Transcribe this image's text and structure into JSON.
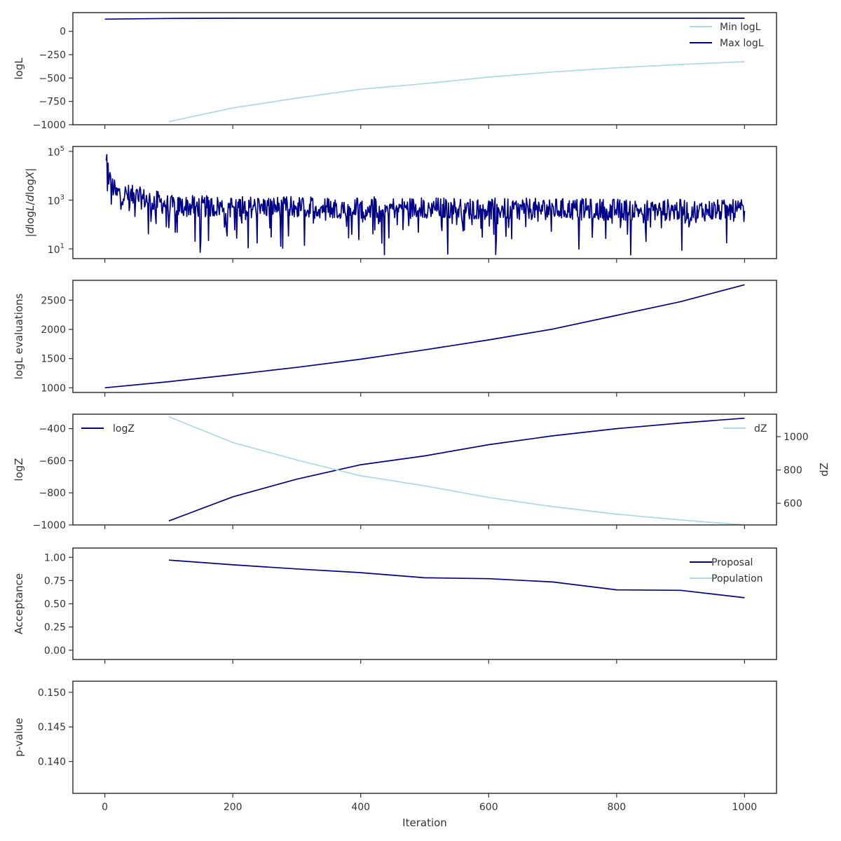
{
  "figure": {
    "xlabel": "Iteration",
    "x_ticks": [
      "0",
      "200",
      "400",
      "600",
      "800",
      "1000"
    ],
    "x_tick_values": [
      0,
      200,
      400,
      600,
      800,
      1000
    ],
    "xlim": [
      -50,
      1050
    ]
  },
  "colors": {
    "dark": "#00008b",
    "light": "#add8e6",
    "axis": "#333333"
  },
  "chart_data": [
    {
      "type": "line",
      "ylabel": "logL",
      "ylim": [
        -1000,
        200
      ],
      "y_ticks": [
        0,
        -250,
        -500,
        -750,
        -1000
      ],
      "y_tick_labels": [
        "0",
        "−250",
        "−500",
        "−750",
        "−1000"
      ],
      "legend": "top-right",
      "series": [
        {
          "name": "Min logL",
          "color": "#add8e6",
          "x": [
            100,
            200,
            300,
            400,
            500,
            600,
            700,
            800,
            900,
            1000
          ],
          "y": [
            -967,
            -820,
            -715,
            -620,
            -560,
            -490,
            -435,
            -390,
            -355,
            -325
          ]
        },
        {
          "name": "Max logL",
          "color": "#00008b",
          "x": [
            0,
            100,
            200,
            400,
            600,
            800,
            1000
          ],
          "y": [
            130,
            138,
            140,
            140,
            140,
            140,
            140
          ]
        }
      ]
    },
    {
      "type": "line",
      "ylabel": "|dlogL/dlogX|",
      "yscale": "log",
      "ylim_log10": [
        0.6,
        5.2
      ],
      "y_ticks_log10": [
        1,
        3,
        5
      ],
      "y_tick_labels": [
        "10",
        "10",
        "10"
      ],
      "y_tick_exponents": [
        "1",
        "3",
        "5"
      ],
      "x_range": [
        2,
        1000
      ],
      "series": [
        {
          "name": "",
          "color": "#00008b",
          "noisy": true,
          "n_points": 999
        }
      ]
    },
    {
      "type": "line",
      "ylabel": "logL evaluations",
      "ylim": [
        920,
        2840
      ],
      "y_ticks": [
        1000,
        1500,
        2000,
        2500
      ],
      "y_tick_labels": [
        "1000",
        "1500",
        "2000",
        "2500"
      ],
      "series": [
        {
          "name": "",
          "color": "#00008b",
          "x": [
            0,
            100,
            200,
            300,
            400,
            500,
            600,
            700,
            800,
            900,
            1000
          ],
          "y": [
            1000,
            1105,
            1225,
            1350,
            1490,
            1650,
            1820,
            2005,
            2240,
            2475,
            2765
          ]
        }
      ]
    },
    {
      "type": "line",
      "ylabel": "logZ",
      "ylabel_right": "dZ",
      "ylim": [
        -1000,
        -310
      ],
      "y_ticks": [
        -400,
        -600,
        -800,
        -1000
      ],
      "y_tick_labels": [
        "−400",
        "−600",
        "−800",
        "−1000"
      ],
      "ylim_right": [
        470,
        1135
      ],
      "y_ticks_right": [
        1000,
        800,
        600
      ],
      "y_tick_labels_right": [
        "1000",
        "800",
        "600"
      ],
      "series": [
        {
          "name": "logZ",
          "color": "#00008b",
          "axis": "left",
          "x": [
            100,
            200,
            300,
            400,
            500,
            600,
            700,
            800,
            900,
            1000
          ],
          "y": [
            -975,
            -825,
            -715,
            -625,
            -570,
            -500,
            -445,
            -400,
            -365,
            -335
          ]
        },
        {
          "name": "dZ",
          "color": "#add8e6",
          "axis": "right",
          "x": [
            100,
            200,
            300,
            400,
            500,
            600,
            700,
            800,
            900,
            1000
          ],
          "y": [
            1120,
            965,
            860,
            765,
            705,
            635,
            580,
            535,
            500,
            470
          ]
        }
      ]
    },
    {
      "type": "line",
      "ylabel": "Acceptance",
      "ylim": [
        -0.1,
        1.1
      ],
      "y_ticks": [
        1.0,
        0.75,
        0.5,
        0.25,
        0.0
      ],
      "y_tick_labels": [
        "1.00",
        "0.75",
        "0.50",
        "0.25",
        "0.00"
      ],
      "legend": "top-right",
      "series": [
        {
          "name": "Proposal",
          "color": "#00008b",
          "x": [
            100,
            200,
            300,
            400,
            500,
            600,
            700,
            800,
            900,
            1000
          ],
          "y": [
            0.97,
            0.92,
            0.875,
            0.835,
            0.78,
            0.77,
            0.735,
            0.65,
            0.645,
            0.565
          ]
        },
        {
          "name": "Population",
          "color": "#add8e6",
          "x": [],
          "y": []
        }
      ]
    },
    {
      "type": "line",
      "ylabel": "p-value",
      "ylim": [
        0.1354,
        0.1516
      ],
      "y_ticks": [
        0.15,
        0.145,
        0.14
      ],
      "y_tick_labels": [
        "0.150",
        "0.145",
        "0.140"
      ],
      "series": []
    }
  ]
}
